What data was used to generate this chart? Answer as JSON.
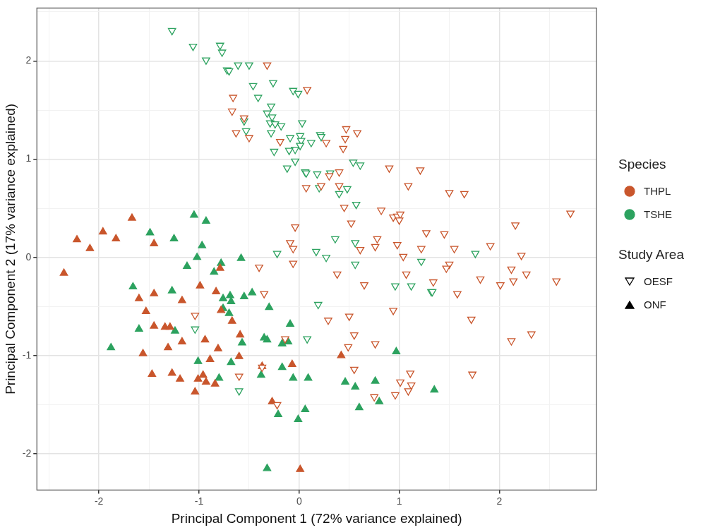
{
  "chart_data": {
    "type": "scatter",
    "xlabel": "Principal Component 1 (72% variance explained)",
    "ylabel": "Principal Component 2 (17% variance explained)",
    "legend_title": "Species",
    "legend": "right",
    "grid": true,
    "annotations": [
      "Study Area",
      "OESF",
      "ONF"
    ],
    "xlim": [
      -2.62,
      2.97
    ],
    "ylim": [
      -2.37,
      2.54
    ],
    "xticks": [
      {
        "value": -2.5,
        "label": null
      },
      -2,
      {
        "value": -1.5,
        "label": null
      },
      -1,
      {
        "value": -0.5,
        "label": null
      },
      0,
      {
        "value": 0.5,
        "label": null
      },
      1,
      {
        "value": 1.5,
        "label": null
      },
      2,
      {
        "value": 2.5,
        "label": null
      }
    ],
    "yticks": [
      -2,
      {
        "value": -1.5,
        "label": null
      },
      -1,
      {
        "value": -0.5,
        "label": null
      },
      0,
      {
        "value": 0.5,
        "label": null
      },
      1,
      {
        "value": 1.5,
        "label": null
      },
      2,
      {
        "value": 2.5,
        "label": null
      }
    ],
    "series": [
      {
        "name": "THPL",
        "color": "#c9562c",
        "marker": "triangle-down",
        "x": [
          -0.32,
          -0.66,
          -0.67,
          -0.55,
          -0.63,
          -0.5,
          0.08,
          -0.19,
          0.27,
          0.47,
          0.58,
          0.46,
          0.44,
          0.4,
          0.3,
          0.22,
          0.07,
          0.4,
          0.9,
          1.21,
          1.09,
          1.5,
          1.65,
          0.45,
          0.82,
          0.94,
          0.98,
          1.01,
          1.0,
          0.52,
          -0.04,
          -0.09,
          -0.06,
          0.78,
          0.76,
          0.61,
          0.98,
          2.71,
          2.16,
          1.27,
          1.45,
          1.22,
          1.55,
          1.91,
          -0.06,
          -0.4,
          1.04,
          0.38,
          1.07,
          0.65,
          -0.35,
          0.5,
          0.29,
          0.94,
          0.55,
          0.49,
          0.76,
          -0.14,
          0.55,
          -0.6,
          -0.22,
          -0.37,
          0.75,
          0.96,
          1.11,
          1.01,
          1.12,
          1.09,
          -1.04,
          2.22,
          1.5,
          1.47,
          2.12,
          2.27,
          2.57,
          1.81,
          1.34,
          2.14,
          2.01,
          1.58,
          1.72,
          2.32,
          2.12,
          1.73
        ],
        "values": [
          1.96,
          1.63,
          1.49,
          1.42,
          1.27,
          1.22,
          1.71,
          1.18,
          1.17,
          1.31,
          1.27,
          1.21,
          1.11,
          0.87,
          0.83,
          0.73,
          0.71,
          0.73,
          0.91,
          0.89,
          0.73,
          0.66,
          0.65,
          0.51,
          0.48,
          0.41,
          0.42,
          0.44,
          0.38,
          0.35,
          0.31,
          0.15,
          0.09,
          0.19,
          0.11,
          0.08,
          0.13,
          0.45,
          0.33,
          0.25,
          0.24,
          0.09,
          0.09,
          0.12,
          -0.06,
          -0.1,
          0.01,
          -0.17,
          -0.17,
          -0.28,
          -0.37,
          -0.6,
          -0.64,
          -0.54,
          -0.79,
          -0.91,
          -0.88,
          -0.83,
          -1.14,
          -1.21,
          -1.5,
          -1.12,
          -1.42,
          -1.4,
          -1.18,
          -1.27,
          -1.3,
          -1.36,
          -0.59,
          0.02,
          -0.07,
          -0.11,
          -0.12,
          -0.17,
          -0.24,
          -0.22,
          -0.25,
          -0.24,
          -0.28,
          -0.37,
          -0.63,
          -0.78,
          -0.85,
          -1.19
        ]
      },
      {
        "name": "TSHE",
        "color": "#2ca25f",
        "marker": "triangle-down",
        "x": [
          -1.27,
          -1.06,
          -0.79,
          -0.77,
          -0.93,
          -0.72,
          -0.7,
          -0.61,
          -0.5,
          -0.46,
          -0.26,
          -0.41,
          -0.06,
          -0.01,
          -0.28,
          -0.32,
          -0.27,
          -0.29,
          -0.24,
          -0.18,
          0.03,
          -0.55,
          -0.53,
          -0.28,
          -0.09,
          0.01,
          0.02,
          0.01,
          0.21,
          0.22,
          0.12,
          -0.04,
          -0.1,
          -0.25,
          -0.04,
          -0.12,
          0.06,
          0.07,
          0.18,
          0.31,
          0.2,
          0.4,
          0.48,
          0.54,
          0.61,
          0.57,
          0.36,
          0.56,
          0.17,
          -0.22,
          0.27,
          0.56,
          0.96,
          1.12,
          1.32,
          1.33,
          1.76,
          0.19,
          0.08,
          -0.6,
          -1.04,
          1.22
        ],
        "values": [
          2.31,
          2.15,
          2.16,
          2.09,
          2.01,
          1.91,
          1.9,
          1.96,
          1.96,
          1.75,
          1.78,
          1.63,
          1.7,
          1.67,
          1.54,
          1.47,
          1.43,
          1.37,
          1.36,
          1.34,
          1.37,
          1.39,
          1.29,
          1.27,
          1.22,
          1.24,
          1.19,
          1.14,
          1.25,
          1.23,
          1.17,
          1.1,
          1.09,
          1.08,
          0.98,
          0.91,
          0.87,
          0.86,
          0.85,
          0.86,
          0.71,
          0.65,
          0.7,
          0.97,
          0.94,
          0.54,
          0.19,
          0.15,
          0.06,
          0.04,
          0.0,
          -0.07,
          -0.29,
          -0.29,
          -0.35,
          -0.35,
          0.04,
          -0.48,
          -0.83,
          -1.36,
          -0.73,
          -0.04
        ]
      },
      {
        "color": "#c9562c",
        "marker": "triangle",
        "x": [
          -1.67,
          -1.96,
          -1.83,
          -2.22,
          -2.09,
          -1.45,
          -2.35,
          -0.79,
          -0.99,
          -1.45,
          -1.6,
          -1.17,
          -0.83,
          -0.78,
          -1.53,
          -1.45,
          -1.34,
          -1.29,
          -1.17,
          -0.94,
          -1.31,
          -0.81,
          -1.56,
          -0.89,
          -1.47,
          -1.27,
          -1.19,
          -0.96,
          -1.01,
          -0.93,
          -0.84,
          -1.04,
          -0.67,
          -0.59,
          -0.6,
          -0.37,
          -0.07,
          0.42,
          -0.27,
          0.01
        ],
        "values": [
          0.4,
          0.26,
          0.19,
          0.18,
          0.09,
          0.14,
          -0.16,
          -0.11,
          -0.29,
          -0.37,
          -0.42,
          -0.44,
          -0.35,
          -0.54,
          -0.55,
          -0.7,
          -0.71,
          -0.71,
          -0.86,
          -0.84,
          -0.92,
          -0.93,
          -0.98,
          -1.04,
          -1.19,
          -1.18,
          -1.24,
          -1.2,
          -1.24,
          -1.27,
          -1.29,
          -1.37,
          -0.65,
          -0.79,
          -1.01,
          -1.11,
          -1.09,
          -1.0,
          -1.47,
          -2.16
        ]
      },
      {
        "color": "#2ca25f",
        "marker": "triangle",
        "x": [
          -1.05,
          -0.93,
          -1.49,
          -1.25,
          -0.97,
          -1.02,
          -1.12,
          -0.78,
          -0.85,
          -1.66,
          -1.27,
          -0.76,
          -0.76,
          -1.6,
          -1.24,
          -1.88,
          -1.01,
          -0.8,
          -0.58,
          -0.69,
          -0.68,
          -0.55,
          -0.47,
          -0.7,
          -0.3,
          -0.09,
          -0.57,
          -0.35,
          -0.32,
          -0.17,
          -0.11,
          -0.68,
          -0.38,
          -0.17,
          -0.06,
          0.09,
          0.97,
          0.46,
          0.56,
          0.76,
          0.8,
          0.6,
          -0.21,
          0.06,
          -0.01,
          -0.32,
          1.35
        ],
        "values": [
          0.43,
          0.37,
          0.25,
          0.19,
          0.12,
          0.0,
          -0.09,
          -0.06,
          -0.15,
          -0.3,
          -0.34,
          -0.42,
          -0.52,
          -0.73,
          -0.75,
          -0.92,
          -1.06,
          -1.23,
          -0.01,
          -0.39,
          -0.45,
          -0.4,
          -0.36,
          -0.57,
          -0.51,
          -0.68,
          -0.87,
          -0.82,
          -0.84,
          -0.88,
          -0.86,
          -1.07,
          -1.2,
          -1.12,
          -1.23,
          -1.23,
          -0.96,
          -1.27,
          -1.32,
          -1.26,
          -1.47,
          -1.53,
          -1.6,
          -1.55,
          -1.65,
          -2.15,
          -1.35
        ]
      }
    ]
  }
}
